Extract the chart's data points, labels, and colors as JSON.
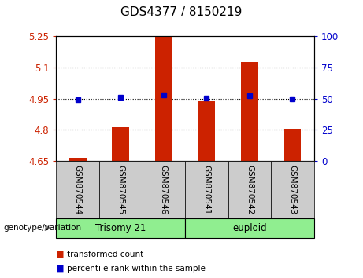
{
  "title": "GDS4377 / 8150219",
  "samples": [
    "GSM870544",
    "GSM870545",
    "GSM870546",
    "GSM870541",
    "GSM870542",
    "GSM870543"
  ],
  "red_values": [
    4.668,
    4.815,
    5.245,
    4.94,
    5.125,
    4.805
  ],
  "blue_values": [
    4.944,
    4.955,
    4.968,
    4.954,
    4.965,
    4.95
  ],
  "ylim_left": [
    4.65,
    5.25
  ],
  "ylim_right": [
    0,
    100
  ],
  "yticks_left": [
    4.65,
    4.8,
    4.95,
    5.1,
    5.25
  ],
  "yticks_right": [
    0,
    25,
    50,
    75,
    100
  ],
  "ytick_labels_left": [
    "4.65",
    "4.8",
    "4.95",
    "5.1",
    "5.25"
  ],
  "ytick_labels_right": [
    "0",
    "25",
    "50",
    "75",
    "100"
  ],
  "hlines": [
    4.8,
    4.95,
    5.1
  ],
  "bar_color": "#CC2200",
  "dot_color": "#0000CC",
  "bar_width": 0.4,
  "base_value": 4.65,
  "legend_red": "transformed count",
  "legend_blue": "percentile rank within the sample",
  "group_row_label": "genotype/variation",
  "background_color": "#ffffff",
  "plot_bg": "#ffffff",
  "tick_area_bg": "#cccccc",
  "group_bg": "#90EE90",
  "trisomy_label": "Trisomy 21",
  "euploid_label": "euploid",
  "n_trisomy": 3,
  "n_euploid": 3
}
